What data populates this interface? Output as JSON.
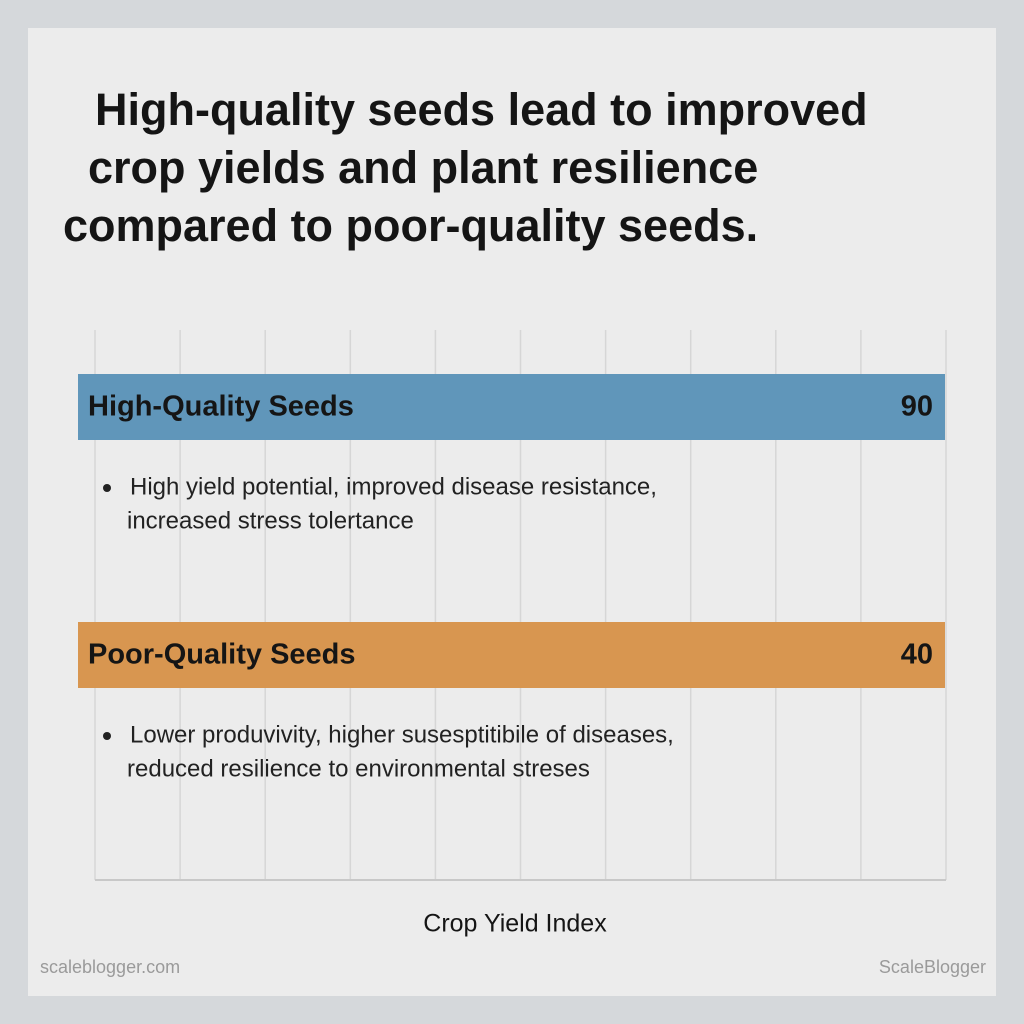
{
  "title_lines": [
    "High-quality seeds lead to improved",
    "crop yields and plant resilience",
    "compared to poor-quality seeds."
  ],
  "rows": [
    {
      "label": "High-Quality Seeds",
      "value": 90,
      "color": "#6096ba",
      "note_lines": [
        "High yield potential, improved disease resistance,",
        "increased stress tolertance"
      ]
    },
    {
      "label": "Poor-Quality Seeds",
      "value": 40,
      "color": "#d89650",
      "note_lines": [
        "Lower produvivity, higher susesptitibile of diseases,",
        "reduced resilience to environmental streses"
      ]
    }
  ],
  "axis_label": "Crop Yield Index",
  "footer_left": "scaleblogger.com",
  "footer_right": "ScaleBlogger"
}
